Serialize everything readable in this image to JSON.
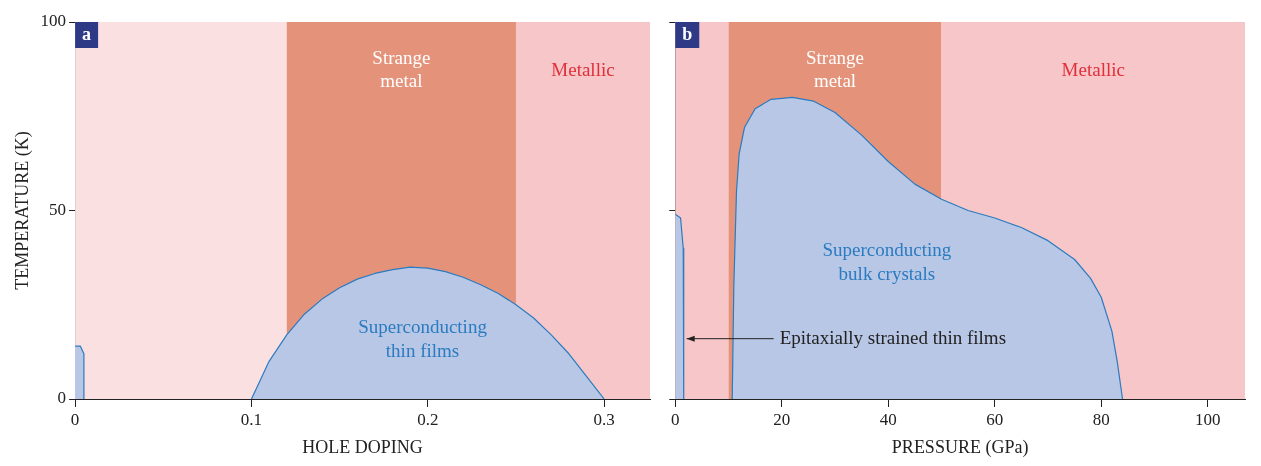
{
  "chart_data": [
    {
      "type": "area",
      "title": "a",
      "xlabel": "HOLE DOPING",
      "ylabel": "TEMPERATURE (K)",
      "xlim": [
        0,
        0.326
      ],
      "ylim": [
        0,
        100
      ],
      "xticks": [
        0,
        0.1,
        0.2,
        0.3
      ],
      "yticks": [
        0,
        50,
        100
      ],
      "grid": false,
      "legend": false,
      "bands": [
        {
          "axis": "x",
          "from": 0,
          "to": 0.12,
          "color": "#fbe0e1"
        },
        {
          "axis": "x",
          "from": 0.12,
          "to": 0.25,
          "label": "Strange metal",
          "color": "#e4937a"
        },
        {
          "axis": "x",
          "from": 0.25,
          "to": 0.326,
          "label": "Metallic",
          "color": "#f7c6c8"
        }
      ],
      "series": [
        {
          "name": "Superconducting thin films",
          "color": "#b9c7e6",
          "x": [
            0.1,
            0.11,
            0.12,
            0.13,
            0.14,
            0.15,
            0.16,
            0.17,
            0.18,
            0.19,
            0.2,
            0.21,
            0.22,
            0.23,
            0.24,
            0.25,
            0.26,
            0.27,
            0.28,
            0.29,
            0.3
          ],
          "values": [
            0,
            10,
            17,
            22.5,
            26.5,
            29.5,
            31.8,
            33.3,
            34.3,
            35,
            34.7,
            33.8,
            32.3,
            30.3,
            28,
            25,
            21.5,
            17,
            12,
            6,
            0
          ]
        },
        {
          "color": "#b9c7e6",
          "x": [
            0,
            0.003,
            0.005,
            0.005
          ],
          "values": [
            14,
            14,
            12,
            0
          ]
        }
      ]
    },
    {
      "type": "area",
      "title": "b",
      "xlabel": "PRESSURE (GPa)",
      "xlim": [
        0,
        107
      ],
      "ylim": [
        0,
        100
      ],
      "xticks": [
        0,
        20,
        40,
        60,
        80,
        100
      ],
      "yticks": [
        0,
        50,
        100
      ],
      "tick_labels": "x",
      "grid": false,
      "legend": false,
      "bands": [
        {
          "axis": "x",
          "from": 0,
          "to": 10,
          "color": "#f7c6c8"
        },
        {
          "axis": "x",
          "from": 10,
          "to": 50,
          "label": "Strange metal",
          "color": "#e4937a"
        },
        {
          "axis": "x",
          "from": 50,
          "to": 107,
          "label": "Metallic",
          "color": "#f7c6c8"
        }
      ],
      "annotations": [
        {
          "text": "Epitaxially strained thin films",
          "x": 1.58,
          "y": 16
        }
      ],
      "series": [
        {
          "name": "Superconducting bulk crystals",
          "color": "#b9c7e6",
          "x": [
            10.7,
            11,
            11.5,
            12,
            13,
            15,
            18,
            22,
            26,
            30,
            35,
            40,
            45,
            50,
            55,
            60,
            65,
            70,
            75,
            78,
            80,
            82,
            83,
            84
          ],
          "values": [
            0,
            30,
            55,
            65,
            72,
            77,
            79.5,
            80,
            79,
            76,
            70,
            63,
            57,
            53,
            50,
            48,
            45.5,
            42,
            37,
            32,
            27,
            18,
            10,
            0
          ]
        },
        {
          "color": "#b9c7e6",
          "x": [
            0,
            1,
            1.5,
            1.58,
            1.6
          ],
          "values": [
            49,
            48,
            40,
            16,
            0
          ]
        }
      ]
    }
  ]
}
